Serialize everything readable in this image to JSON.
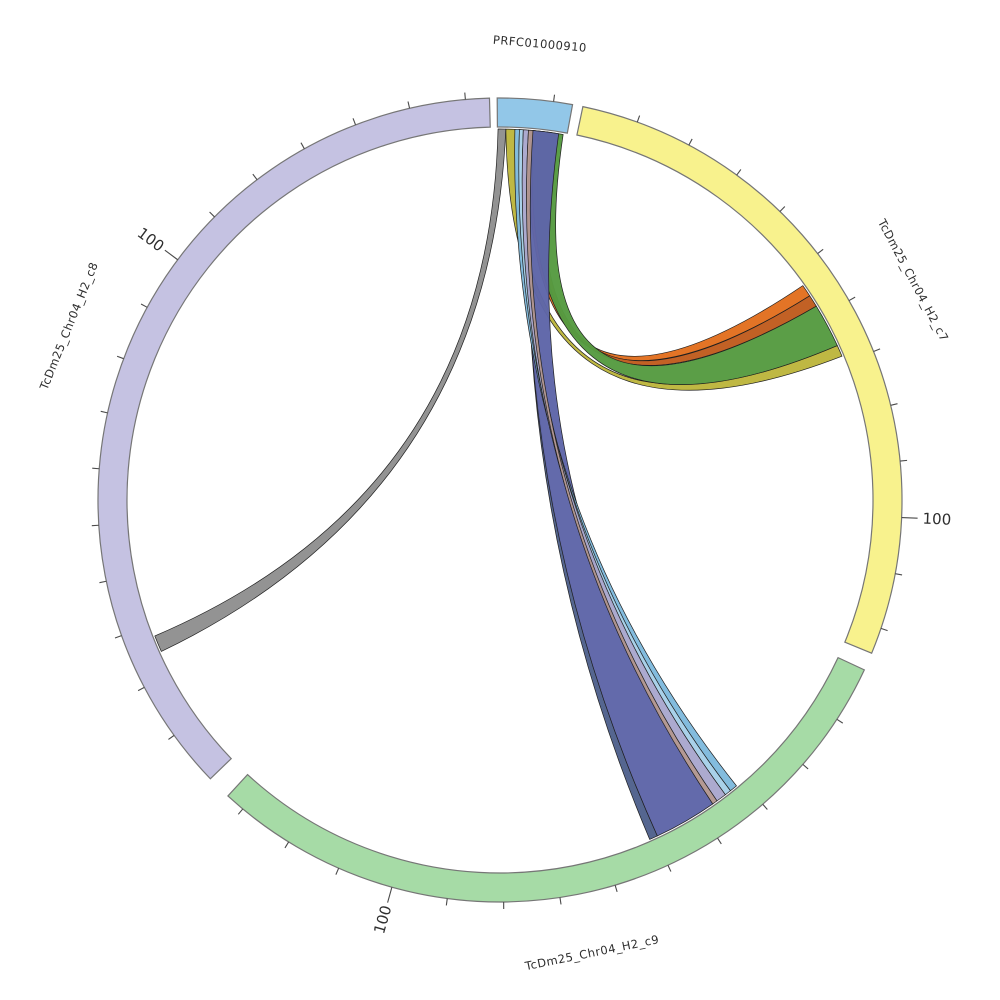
{
  "figure": {
    "background_color": "#ffffff",
    "text_color": "#2e2e2e",
    "segment_outline_color": "#767676",
    "ribbon_outline_color": "#1f1f1f",
    "tick_color": "#4a4a4a"
  },
  "chart_data": {
    "type": "chord",
    "title": "",
    "legend_position": "none",
    "grid": false,
    "center": [
      500,
      500
    ],
    "radius_outer": 402,
    "radius_inner": 373,
    "deg_per_unit": 0.806,
    "tick_interval_units": 10,
    "major_tick_unit": 100,
    "segments": [
      {
        "id": "PRFC01000910",
        "label": "PRFC01000910",
        "start_deg": -90.4,
        "end_deg": -79.6,
        "length_units": 13.4,
        "color": "#92c7e8",
        "label_angle_deg": -85,
        "label_radius": 458,
        "major_label": null
      },
      {
        "id": "TcDm25_Chr04_H2_c7",
        "label": "TcDm25_Chr04_H2_c7",
        "start_deg": -78.1,
        "end_deg": 22.4,
        "length_units": 124.7,
        "color": "#f8f28d",
        "label_angle_deg": -28,
        "label_radius": 468,
        "major_label": "100"
      },
      {
        "id": "TcDm25_Chr04_H2_c9",
        "label": "TcDm25_Chr04_H2_c9",
        "start_deg": 25.0,
        "end_deg": 132.6,
        "length_units": 133.5,
        "color": "#a6dba6",
        "label_angle_deg": 78.5,
        "label_radius": 462,
        "major_label": "100"
      },
      {
        "id": "TcDm25_Chr04_H2_c8",
        "label": "TcDm25_Chr04_H2_c8",
        "start_deg": 136.1,
        "end_deg": 268.5,
        "length_units": 164.3,
        "color": "#c5c2e2",
        "label_angle_deg": 202,
        "label_radius": 465,
        "major_label": "100"
      }
    ],
    "ribbons": [
      {
        "name": "olive",
        "color": "#bdb63d",
        "source_segment": "PRFC01000910",
        "target_segment": "TcDm25_Chr04_H2_c7",
        "src": [
          -89.1,
          -87.7
        ],
        "tgt": [
          -24.6,
          -22.8
        ]
      },
      {
        "name": "orange-bright",
        "color": "#e2701f",
        "source_segment": "PRFC01000910",
        "target_segment": "TcDm25_Chr04_H2_c7",
        "src": [
          -85.2,
          -83.8
        ],
        "tgt": [
          -35.3,
          -33.4
        ]
      },
      {
        "name": "orange-dark",
        "color": "#c05c1e",
        "source_segment": "PRFC01000910",
        "target_segment": "TcDm25_Chr04_H2_c7",
        "src": [
          -83.8,
          -82.6
        ],
        "tgt": [
          -33.4,
          -31.5
        ]
      },
      {
        "name": "green",
        "color": "#569b41",
        "source_segment": "PRFC01000910",
        "target_segment": "TcDm25_Chr04_H2_c7",
        "src": [
          -84.8,
          -80.2
        ],
        "tgt": [
          -31.5,
          -24.6
        ]
      },
      {
        "name": "dark-slate-edge",
        "color": "#50618c",
        "source_segment": "PRFC01000910",
        "target_segment": "TcDm25_Chr04_H2_c9",
        "src": [
          -85.0,
          -84.8
        ],
        "tgt": [
          64.9,
          66.2
        ]
      },
      {
        "name": "purple",
        "color": "#5e65a8",
        "source_segment": "PRFC01000910",
        "target_segment": "TcDm25_Chr04_H2_c9",
        "src": [
          -85.2,
          -80.9
        ],
        "tgt": [
          55.0,
          64.9
        ]
      },
      {
        "name": "gray",
        "color": "#8f8f8f",
        "source_segment": "PRFC01000910",
        "target_segment": "TcDm25_Chr04_H2_c8",
        "src": [
          -90.3,
          -89.1
        ],
        "tgt": [
          155.9,
          158.5
        ]
      },
      {
        "name": "sky-1",
        "color": "#7fbadd",
        "source_segment": "PRFC01000910",
        "target_segment": "TcDm25_Chr04_H2_c9",
        "src": [
          -87.7,
          -87.0
        ],
        "tgt": [
          50.4,
          51.6
        ]
      },
      {
        "name": "sky-2",
        "color": "#a6d0e8",
        "source_segment": "PRFC01000910",
        "target_segment": "TcDm25_Chr04_H2_c9",
        "src": [
          -87.0,
          -86.4
        ],
        "tgt": [
          51.6,
          52.6
        ]
      },
      {
        "name": "periwinkle",
        "color": "#a9a7cd",
        "source_segment": "PRFC01000910",
        "target_segment": "TcDm25_Chr04_H2_c9",
        "src": [
          -86.4,
          -85.6
        ],
        "tgt": [
          52.6,
          54.2
        ]
      },
      {
        "name": "rosybrown",
        "color": "#b2968f",
        "source_segment": "PRFC01000910",
        "target_segment": "TcDm25_Chr04_H2_c9",
        "src": [
          -85.6,
          -84.9
        ],
        "tgt": [
          54.2,
          55.0
        ]
      }
    ]
  }
}
